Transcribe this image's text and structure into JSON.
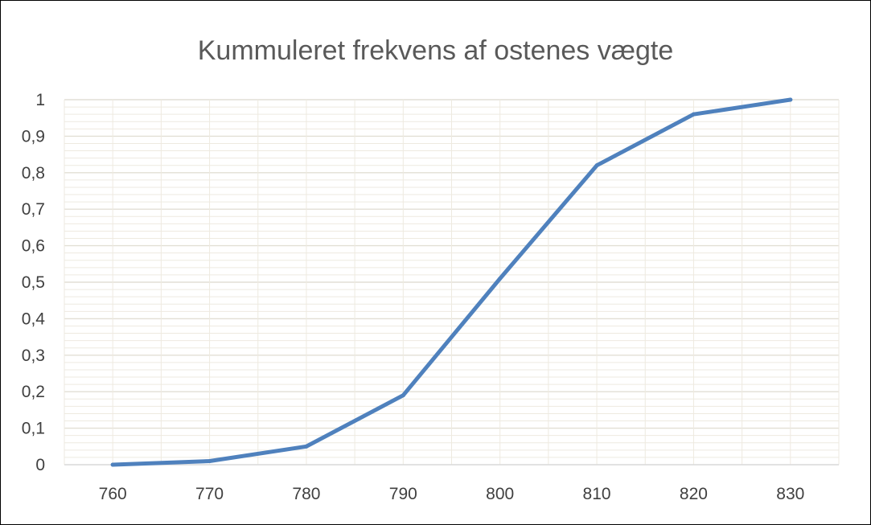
{
  "chart_data": {
    "type": "line",
    "title": "Kummuleret frekvens af ostenes vægte",
    "xlabel": "",
    "ylabel": "",
    "x": [
      760,
      770,
      780,
      790,
      800,
      810,
      820,
      830
    ],
    "x_tick_labels": [
      "760",
      "770",
      "780",
      "790",
      "800",
      "810",
      "820",
      "830"
    ],
    "y_tick_labels": [
      "0",
      "0,1",
      "0,2",
      "0,3",
      "0,4",
      "0,5",
      "0,6",
      "0,7",
      "0,8",
      "0,9",
      "1"
    ],
    "xlim": [
      755,
      835
    ],
    "ylim": [
      0,
      1
    ],
    "series": [
      {
        "values": [
          0,
          0.01,
          0.05,
          0.19,
          0.51,
          0.82,
          0.96,
          1.0
        ]
      }
    ],
    "grid": true,
    "legend": "none",
    "line_color": "#4f81bd",
    "grid_color": "#eeeae0",
    "axis_color": "#d9d9d9"
  }
}
